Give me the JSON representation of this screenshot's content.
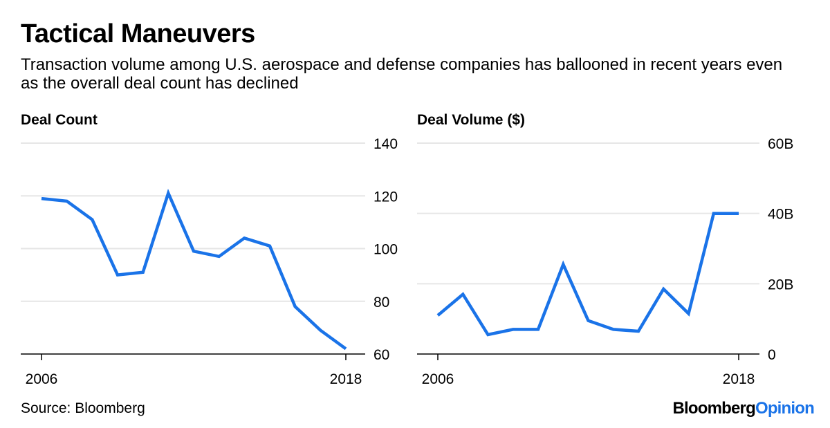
{
  "header": {
    "title": "Tactical Maneuvers",
    "subtitle": "Transaction volume among U.S. aerospace and defense companies has ballooned in recent years even as the overall deal count has declined"
  },
  "footer": {
    "source": "Source: Bloomberg",
    "brand_main": "Bloomberg",
    "brand_accent": "Opinion"
  },
  "colors": {
    "line": "#1a73e8",
    "grid": "#e6e6e6",
    "axis": "#000000"
  },
  "chart_data": [
    {
      "type": "line",
      "title": "Deal Count",
      "x": [
        2006,
        2007,
        2008,
        2009,
        2010,
        2011,
        2012,
        2013,
        2014,
        2015,
        2016,
        2017,
        2018
      ],
      "values": [
        119,
        118,
        111,
        90,
        91,
        121,
        99,
        97,
        104,
        101,
        78,
        69,
        62
      ],
      "ylim": [
        60,
        140
      ],
      "yticks": [
        60,
        80,
        100,
        120,
        140
      ],
      "ytick_labels": [
        "60",
        "80",
        "100",
        "120",
        "140"
      ],
      "xtick_labels": [
        "2006",
        "2018"
      ],
      "xlabel": "",
      "ylabel": ""
    },
    {
      "type": "line",
      "title": "Deal Volume ($)",
      "x": [
        2006,
        2007,
        2008,
        2009,
        2010,
        2011,
        2012,
        2013,
        2014,
        2015,
        2016,
        2017,
        2018
      ],
      "values": [
        11,
        17,
        5.5,
        7,
        7,
        25.5,
        9.5,
        7,
        6.5,
        18.5,
        11.5,
        40,
        40
      ],
      "ylim": [
        0,
        60
      ],
      "yticks": [
        0,
        20,
        40,
        60
      ],
      "ytick_labels": [
        "0",
        "20B",
        "40B",
        "60B"
      ],
      "xtick_labels": [
        "2006",
        "2018"
      ],
      "xlabel": "",
      "ylabel": ""
    }
  ]
}
